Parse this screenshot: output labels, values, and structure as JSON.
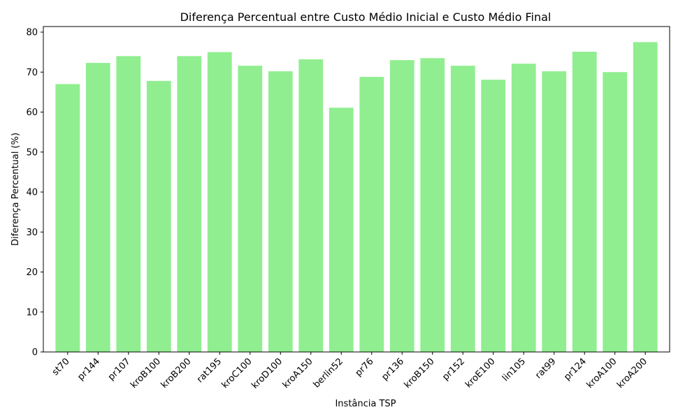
{
  "chart_data": {
    "type": "bar",
    "title": "Diferença Percentual entre Custo Médio Inicial e Custo Médio Final",
    "xlabel": "Instância TSP",
    "ylabel": "Diferença Percentual (%)",
    "categories": [
      "st70",
      "pr144",
      "pr107",
      "kroB100",
      "kroB200",
      "rat195",
      "kroC100",
      "kroD100",
      "kroA150",
      "berlin52",
      "pr76",
      "pr136",
      "kroB150",
      "pr152",
      "kroE100",
      "lin105",
      "rat99",
      "pr124",
      "kroA100",
      "kroA200"
    ],
    "values": [
      67.0,
      72.3,
      74.0,
      67.8,
      74.0,
      75.0,
      71.6,
      70.2,
      73.2,
      61.1,
      68.8,
      73.0,
      73.5,
      71.6,
      68.1,
      72.1,
      70.2,
      75.1,
      70.0,
      77.5
    ],
    "ylim": [
      0,
      81.4
    ],
    "yticks": [
      0,
      10,
      20,
      30,
      40,
      50,
      60,
      70,
      80
    ],
    "bar_color": "#90ee90",
    "grid": false,
    "legend": "none"
  }
}
